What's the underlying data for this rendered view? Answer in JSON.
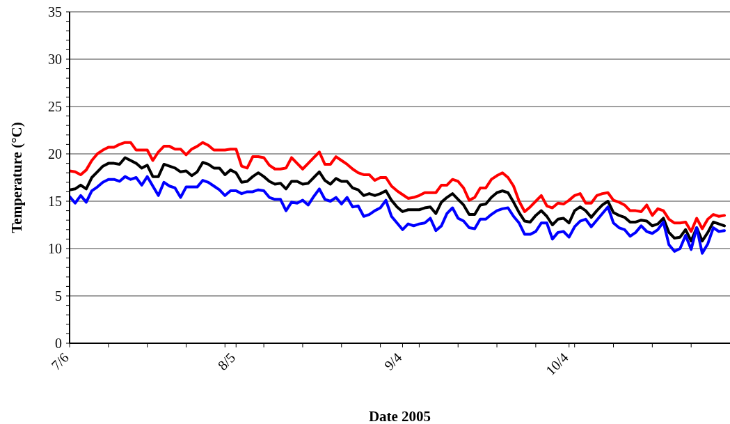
{
  "chart_data": {
    "type": "line",
    "xlabel": "Date 2005",
    "ylabel": "Temperature (°C)",
    "x": [
      "2005-07-06",
      "2005-07-07",
      "2005-07-08",
      "2005-07-09",
      "2005-07-10",
      "2005-07-11",
      "2005-07-12",
      "2005-07-13",
      "2005-07-14",
      "2005-07-15",
      "2005-07-16",
      "2005-07-17",
      "2005-07-18",
      "2005-07-19",
      "2005-07-20",
      "2005-07-21",
      "2005-07-22",
      "2005-07-23",
      "2005-07-24",
      "2005-07-25",
      "2005-07-26",
      "2005-07-27",
      "2005-07-28",
      "2005-07-29",
      "2005-07-30",
      "2005-07-31",
      "2005-08-01",
      "2005-08-02",
      "2005-08-03",
      "2005-08-04",
      "2005-08-05",
      "2005-08-06",
      "2005-08-07",
      "2005-08-08",
      "2005-08-09",
      "2005-08-10",
      "2005-08-11",
      "2005-08-12",
      "2005-08-13",
      "2005-08-14",
      "2005-08-15",
      "2005-08-16",
      "2005-08-17",
      "2005-08-18",
      "2005-08-19",
      "2005-08-20",
      "2005-08-21",
      "2005-08-22",
      "2005-08-23",
      "2005-08-24",
      "2005-08-25",
      "2005-08-26",
      "2005-08-27",
      "2005-08-28",
      "2005-08-29",
      "2005-08-30",
      "2005-08-31",
      "2005-09-01",
      "2005-09-02",
      "2005-09-03",
      "2005-09-04",
      "2005-09-05",
      "2005-09-06",
      "2005-09-07",
      "2005-09-08",
      "2005-09-09",
      "2005-09-10",
      "2005-09-11",
      "2005-09-12",
      "2005-09-13",
      "2005-09-14",
      "2005-09-15",
      "2005-09-16",
      "2005-09-17",
      "2005-09-18",
      "2005-09-19",
      "2005-09-20",
      "2005-09-21",
      "2005-09-22",
      "2005-09-23",
      "2005-09-24",
      "2005-09-25",
      "2005-09-26",
      "2005-09-27",
      "2005-09-28",
      "2005-09-29",
      "2005-09-30",
      "2005-10-01",
      "2005-10-02",
      "2005-10-03",
      "2005-10-04",
      "2005-10-05",
      "2005-10-06",
      "2005-10-07",
      "2005-10-08",
      "2005-10-09",
      "2005-10-10",
      "2005-10-11",
      "2005-10-12",
      "2005-10-13",
      "2005-10-14",
      "2005-10-15",
      "2005-10-16",
      "2005-10-17",
      "2005-10-18",
      "2005-10-19",
      "2005-10-20",
      "2005-10-21",
      "2005-10-22",
      "2005-10-23",
      "2005-10-24",
      "2005-10-25",
      "2005-10-26",
      "2005-10-27",
      "2005-10-28",
      "2005-10-29",
      "2005-10-30",
      "2005-10-31",
      "2005-11-01"
    ],
    "series": [
      {
        "color": "#ff0000",
        "values": [
          18.2,
          18.1,
          17.8,
          18.3,
          19.3,
          20.0,
          20.4,
          20.7,
          20.7,
          21.0,
          21.2,
          21.2,
          20.4,
          20.4,
          20.4,
          19.3,
          20.2,
          20.8,
          20.8,
          20.5,
          20.5,
          19.9,
          20.5,
          20.8,
          21.2,
          20.9,
          20.4,
          20.4,
          20.4,
          20.5,
          20.5,
          18.7,
          18.5,
          19.7,
          19.7,
          19.6,
          18.8,
          18.4,
          18.4,
          18.5,
          19.6,
          19.0,
          18.4,
          19.0,
          19.6,
          20.2,
          18.9,
          18.9,
          19.7,
          19.3,
          18.9,
          18.4,
          18.0,
          17.8,
          17.8,
          17.2,
          17.5,
          17.5,
          16.6,
          16.1,
          15.7,
          15.3,
          15.4,
          15.6,
          15.9,
          15.9,
          15.9,
          16.7,
          16.7,
          17.3,
          17.1,
          16.4,
          15.1,
          15.4,
          16.4,
          16.4,
          17.3,
          17.7,
          18.0,
          17.5,
          16.6,
          15.0,
          13.9,
          14.4,
          15.0,
          15.6,
          14.5,
          14.3,
          14.8,
          14.7,
          15.1,
          15.6,
          15.8,
          14.8,
          14.8,
          15.6,
          15.8,
          15.9,
          15.1,
          14.9,
          14.6,
          14.0,
          14.0,
          13.9,
          14.6,
          13.5,
          14.2,
          14.0,
          13.1,
          12.7,
          12.7,
          12.8,
          11.8,
          13.2,
          12.1,
          13.1,
          13.6,
          13.4,
          13.5
        ]
      },
      {
        "color": "#000000",
        "values": [
          16.2,
          16.3,
          16.7,
          16.3,
          17.5,
          18.1,
          18.7,
          19.0,
          19.0,
          18.9,
          19.6,
          19.3,
          19.0,
          18.5,
          18.8,
          17.6,
          17.6,
          18.9,
          18.7,
          18.5,
          18.1,
          18.2,
          17.7,
          18.1,
          19.1,
          18.9,
          18.5,
          18.5,
          17.8,
          18.3,
          18.0,
          17.0,
          17.1,
          17.6,
          18.0,
          17.6,
          17.1,
          16.8,
          16.9,
          16.3,
          17.1,
          17.1,
          16.8,
          16.9,
          17.5,
          18.1,
          17.2,
          16.8,
          17.4,
          17.1,
          17.1,
          16.4,
          16.2,
          15.6,
          15.8,
          15.6,
          15.8,
          16.1,
          15.1,
          14.4,
          13.9,
          14.1,
          14.1,
          14.1,
          14.3,
          14.4,
          13.7,
          14.9,
          15.4,
          15.8,
          15.2,
          14.6,
          13.6,
          13.6,
          14.6,
          14.7,
          15.4,
          15.9,
          16.1,
          15.9,
          14.9,
          13.8,
          12.9,
          12.8,
          13.5,
          14.0,
          13.4,
          12.5,
          13.1,
          13.2,
          12.7,
          14.0,
          14.4,
          14.0,
          13.3,
          14.0,
          14.6,
          15.0,
          13.8,
          13.5,
          13.3,
          12.8,
          12.8,
          13.0,
          12.9,
          12.4,
          12.6,
          13.2,
          11.7,
          11.1,
          11.2,
          12.0,
          10.8,
          12.2,
          10.8,
          11.7,
          12.8,
          12.6,
          12.4
        ]
      },
      {
        "color": "#0000ff",
        "values": [
          15.5,
          14.8,
          15.6,
          14.9,
          16.1,
          16.5,
          17.0,
          17.3,
          17.3,
          17.1,
          17.6,
          17.3,
          17.5,
          16.7,
          17.6,
          16.6,
          15.6,
          17.0,
          16.6,
          16.4,
          15.4,
          16.5,
          16.5,
          16.5,
          17.2,
          17.0,
          16.6,
          16.2,
          15.6,
          16.1,
          16.1,
          15.8,
          16.0,
          16.0,
          16.2,
          16.1,
          15.4,
          15.2,
          15.2,
          14.0,
          14.9,
          14.8,
          15.1,
          14.6,
          15.5,
          16.3,
          15.2,
          15.0,
          15.4,
          14.7,
          15.4,
          14.4,
          14.5,
          13.4,
          13.6,
          14.0,
          14.3,
          15.1,
          13.4,
          12.7,
          12.0,
          12.6,
          12.4,
          12.6,
          12.7,
          13.2,
          11.9,
          12.4,
          13.7,
          14.3,
          13.2,
          12.9,
          12.2,
          12.1,
          13.1,
          13.1,
          13.6,
          14.0,
          14.2,
          14.3,
          13.4,
          12.7,
          11.5,
          11.5,
          11.8,
          12.7,
          12.7,
          11.0,
          11.7,
          11.8,
          11.2,
          12.3,
          12.9,
          13.1,
          12.3,
          13.0,
          13.7,
          14.4,
          12.7,
          12.2,
          12.0,
          11.3,
          11.7,
          12.4,
          11.8,
          11.6,
          12.0,
          12.8,
          10.4,
          9.7,
          10.0,
          11.4,
          9.9,
          12.2,
          9.5,
          10.5,
          12.2,
          11.8,
          11.9
        ]
      }
    ],
    "xlim": [
      "2005-07-06",
      "2005-11-02"
    ],
    "xticks": [
      {
        "value": "2005-07-06",
        "label": "7/6"
      },
      {
        "value": "2005-07-13",
        "label": null
      },
      {
        "value": "2005-07-20",
        "label": null
      },
      {
        "value": "2005-07-27",
        "label": null
      },
      {
        "value": "2005-08-03",
        "label": null
      },
      {
        "value": "2005-08-05",
        "label": "8/5"
      },
      {
        "value": "2005-08-10",
        "label": null
      },
      {
        "value": "2005-08-17",
        "label": null
      },
      {
        "value": "2005-08-24",
        "label": null
      },
      {
        "value": "2005-08-31",
        "label": null
      },
      {
        "value": "2005-09-04",
        "label": "9/4"
      },
      {
        "value": "2005-09-07",
        "label": null
      },
      {
        "value": "2005-09-14",
        "label": null
      },
      {
        "value": "2005-09-21",
        "label": null
      },
      {
        "value": "2005-09-28",
        "label": null
      },
      {
        "value": "2005-10-04",
        "label": "10/4"
      },
      {
        "value": "2005-10-05",
        "label": null
      },
      {
        "value": "2005-10-12",
        "label": null
      },
      {
        "value": "2005-10-19",
        "label": null
      },
      {
        "value": "2005-10-26",
        "label": null
      }
    ],
    "ylim": [
      0,
      35
    ],
    "yticks": [
      0,
      {
        "value": 1,
        "label": null
      },
      {
        "value": 2,
        "label": null
      },
      {
        "value": 3,
        "label": null
      },
      {
        "value": 4,
        "label": null
      },
      5,
      {
        "value": 6,
        "label": null
      },
      {
        "value": 7,
        "label": null
      },
      {
        "value": 8,
        "label": null
      },
      {
        "value": 9,
        "label": null
      },
      10,
      {
        "value": 11,
        "label": null
      },
      {
        "value": 12,
        "label": null
      },
      {
        "value": 13,
        "label": null
      },
      {
        "value": 14,
        "label": null
      },
      15,
      {
        "value": 16,
        "label": null
      },
      {
        "value": 17,
        "label": null
      },
      {
        "value": 18,
        "label": null
      },
      {
        "value": 19,
        "label": null
      },
      20,
      {
        "value": 21,
        "label": null
      },
      {
        "value": 22,
        "label": null
      },
      {
        "value": 23,
        "label": null
      },
      {
        "value": 24,
        "label": null
      },
      25,
      {
        "value": 26,
        "label": null
      },
      {
        "value": 27,
        "label": null
      },
      {
        "value": 28,
        "label": null
      },
      {
        "value": 29,
        "label": null
      },
      30,
      {
        "value": 31,
        "label": null
      },
      {
        "value": 32,
        "label": null
      },
      {
        "value": 33,
        "label": null
      },
      {
        "value": 34,
        "label": null
      },
      35
    ],
    "grid": "y",
    "marker": "none"
  }
}
